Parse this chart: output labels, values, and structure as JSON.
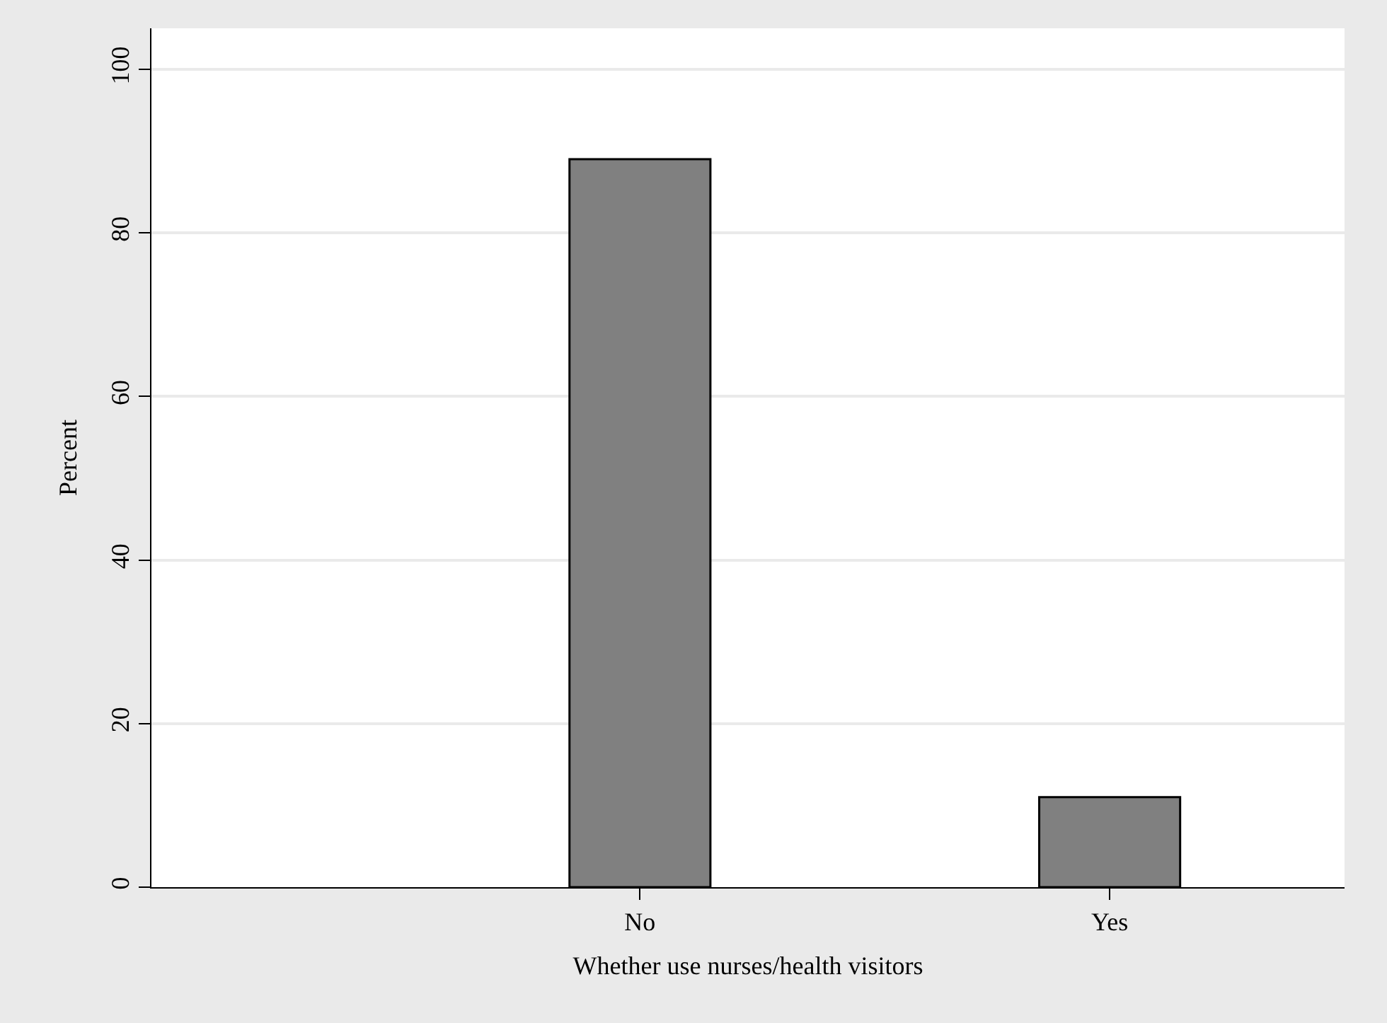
{
  "chart_data": {
    "type": "bar",
    "xlabel": "Whether use nurses/health visitors",
    "ylabel": "Percent",
    "categories": [
      "No",
      "Yes"
    ],
    "values": [
      89,
      11
    ],
    "color": "#808080",
    "ylim": [
      0,
      105
    ],
    "yticks": [
      0,
      20,
      40,
      60,
      80,
      100
    ],
    "grid": "y",
    "legend": false
  }
}
